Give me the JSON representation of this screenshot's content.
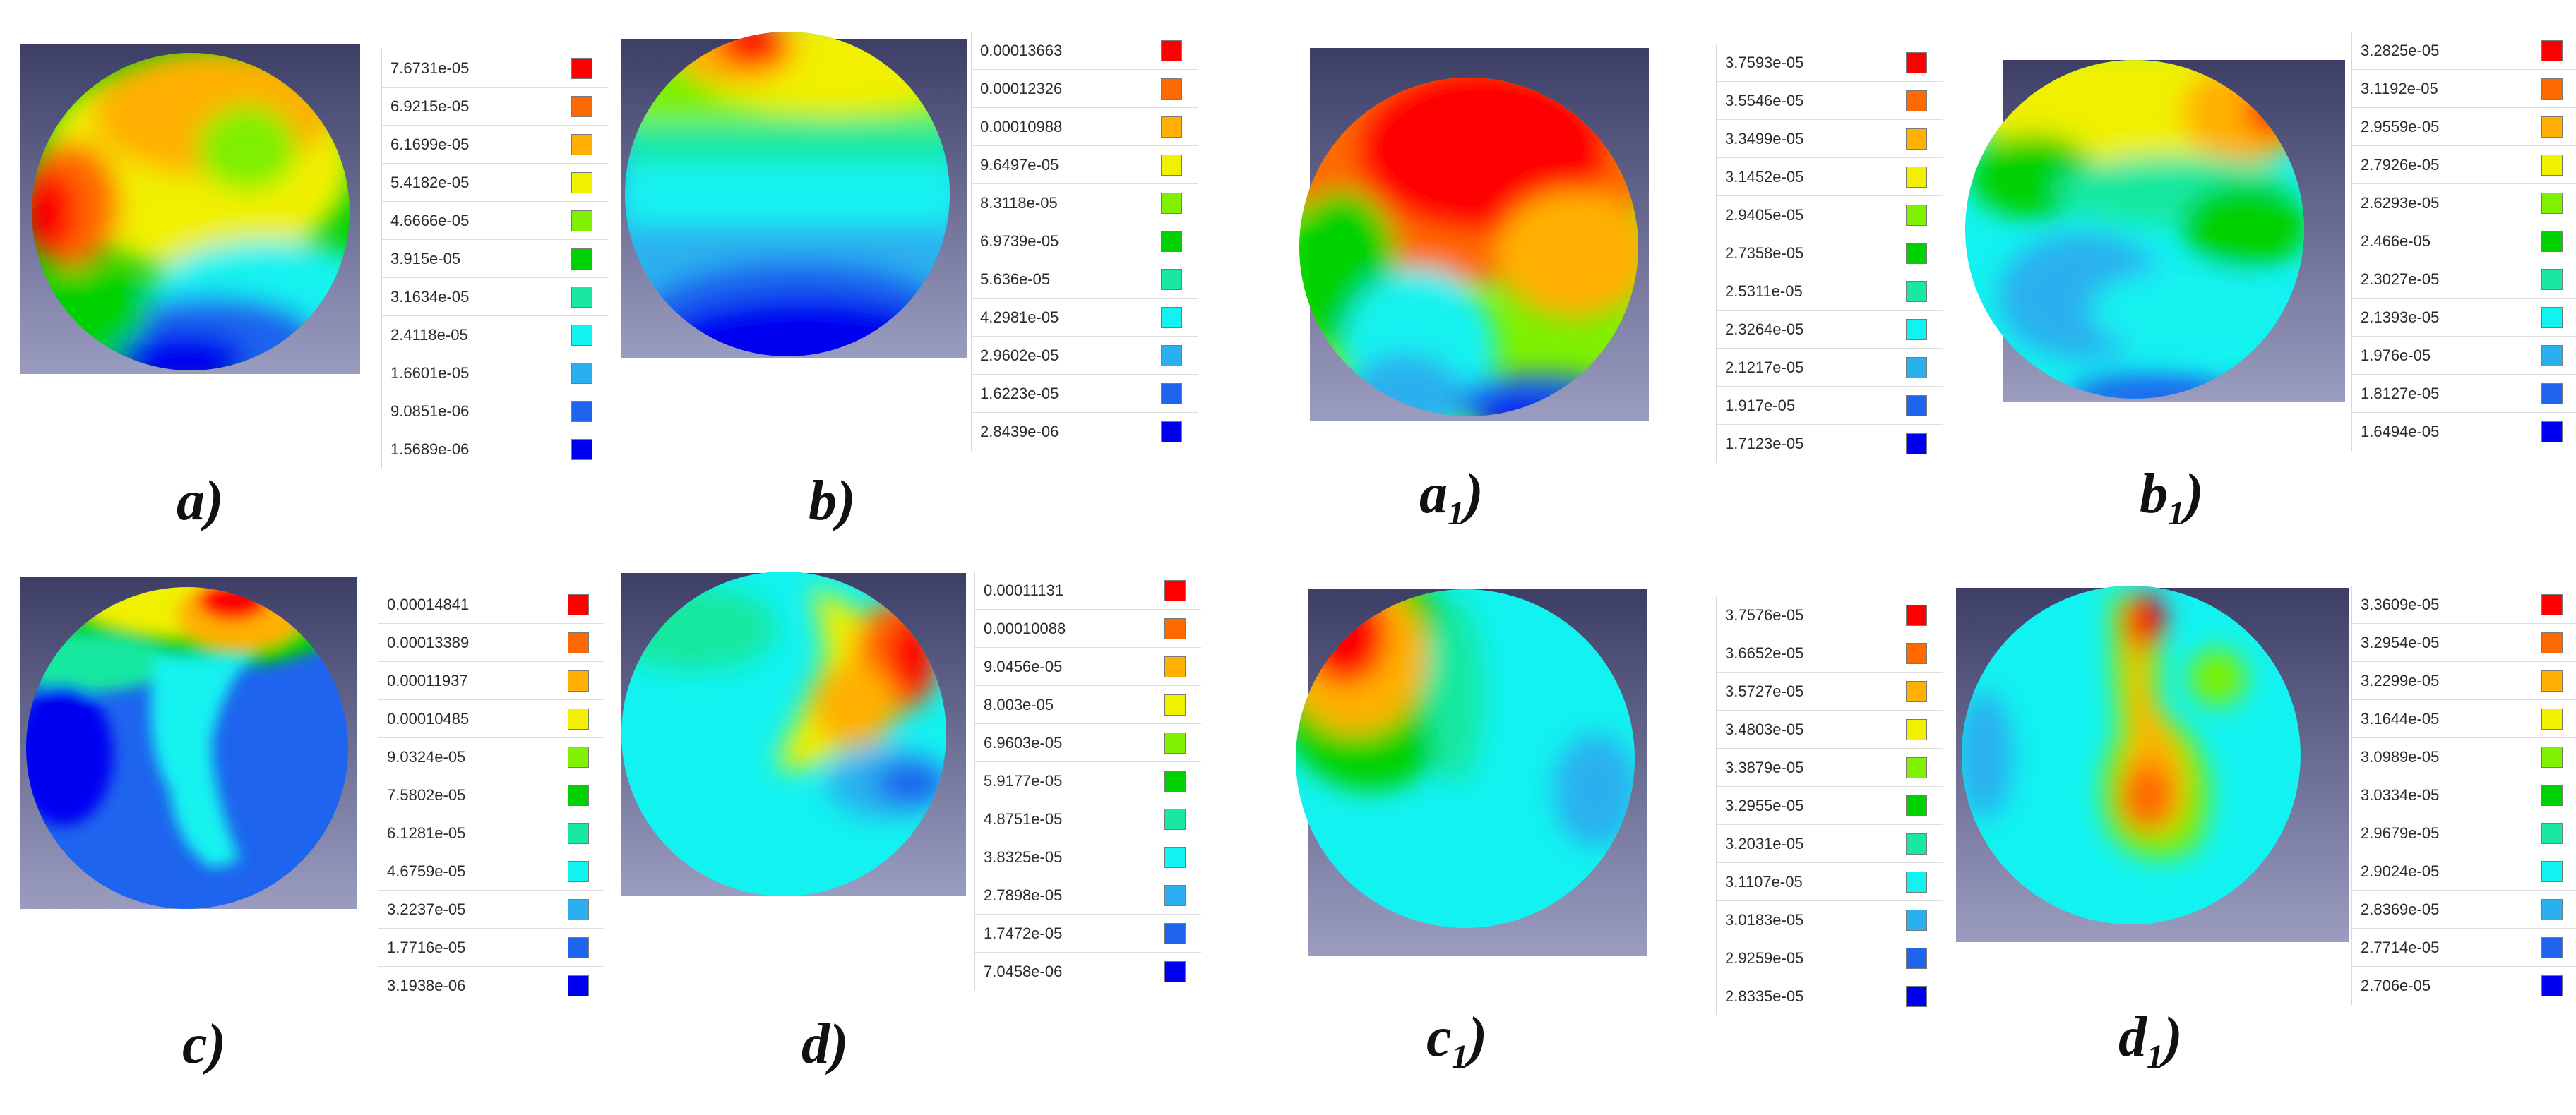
{
  "colors": [
    "#ff0000",
    "#ff6a00",
    "#ffb000",
    "#f0f000",
    "#7ef000",
    "#00d100",
    "#19e8a0",
    "#12f2f0",
    "#2ab0ee",
    "#1e64ee",
    "#0000f0"
  ],
  "panels": [
    {
      "id": "a",
      "caption_main": "a",
      "caption_sub": "",
      "caption_suffix": ")",
      "legend": [
        "7.6731e-05",
        "6.9215e-05",
        "6.1699e-05",
        "5.4182e-05",
        "4.6666e-05",
        "3.915e-05",
        "3.1634e-05",
        "2.4118e-05",
        "1.6601e-05",
        "9.0851e-06",
        "1.5689e-06"
      ]
    },
    {
      "id": "b",
      "caption_main": "b",
      "caption_sub": "",
      "caption_suffix": ")",
      "legend": [
        "0.00013663",
        "0.00012326",
        "0.00010988",
        "9.6497e-05",
        "8.3118e-05",
        "6.9739e-05",
        "5.636e-05",
        "4.2981e-05",
        "2.9602e-05",
        "1.6223e-05",
        "2.8439e-06"
      ]
    },
    {
      "id": "a1",
      "caption_main": "a",
      "caption_sub": "1",
      "caption_suffix": ")",
      "legend": [
        "3.7593e-05",
        "3.5546e-05",
        "3.3499e-05",
        "3.1452e-05",
        "2.9405e-05",
        "2.7358e-05",
        "2.5311e-05",
        "2.3264e-05",
        "2.1217e-05",
        "1.917e-05",
        "1.7123e-05"
      ]
    },
    {
      "id": "b1",
      "caption_main": "b",
      "caption_sub": "1",
      "caption_suffix": ")",
      "legend": [
        "3.2825e-05",
        "3.1192e-05",
        "2.9559e-05",
        "2.7926e-05",
        "2.6293e-05",
        "2.466e-05",
        "2.3027e-05",
        "2.1393e-05",
        "1.976e-05",
        "1.8127e-05",
        "1.6494e-05"
      ]
    },
    {
      "id": "c",
      "caption_main": "c",
      "caption_sub": "",
      "caption_suffix": ")",
      "legend": [
        "0.00014841",
        "0.00013389",
        "0.00011937",
        "0.00010485",
        "9.0324e-05",
        "7.5802e-05",
        "6.1281e-05",
        "4.6759e-05",
        "3.2237e-05",
        "1.7716e-05",
        "3.1938e-06"
      ]
    },
    {
      "id": "d",
      "caption_main": "d",
      "caption_sub": "",
      "caption_suffix": ")",
      "legend": [
        "0.00011131",
        "0.00010088",
        "9.0456e-05",
        "8.003e-05",
        "6.9603e-05",
        "5.9177e-05",
        "4.8751e-05",
        "3.8325e-05",
        "2.7898e-05",
        "1.7472e-05",
        "7.0458e-06"
      ]
    },
    {
      "id": "c1",
      "caption_main": "c",
      "caption_sub": "1",
      "caption_suffix": ")",
      "legend": [
        "3.7576e-05",
        "3.6652e-05",
        "3.5727e-05",
        "3.4803e-05",
        "3.3879e-05",
        "3.2955e-05",
        "3.2031e-05",
        "3.1107e-05",
        "3.0183e-05",
        "2.9259e-05",
        "2.8335e-05"
      ]
    },
    {
      "id": "d1",
      "caption_main": "d",
      "caption_sub": "1",
      "caption_suffix": ")",
      "legend": [
        "3.3609e-05",
        "3.2954e-05",
        "3.2299e-05",
        "3.1644e-05",
        "3.0989e-05",
        "3.0334e-05",
        "2.9679e-05",
        "2.9024e-05",
        "2.8369e-05",
        "2.7714e-05",
        "2.706e-05"
      ]
    }
  ]
}
